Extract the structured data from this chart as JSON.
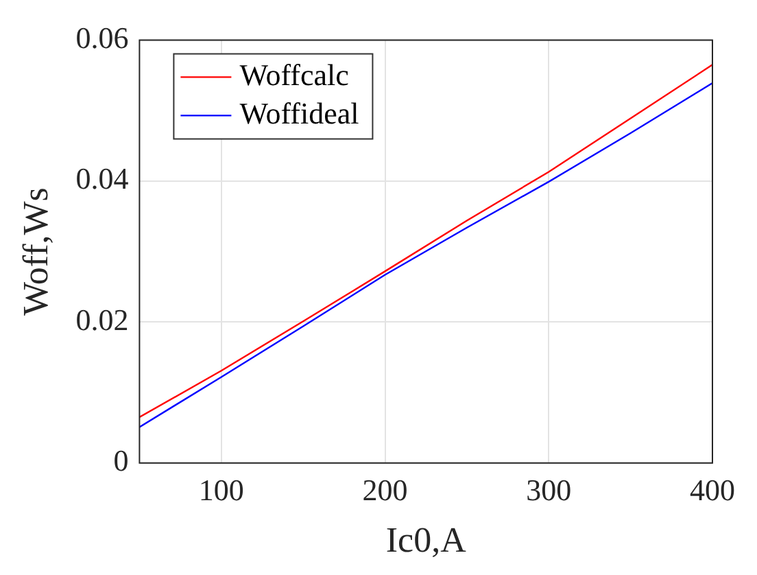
{
  "chart_data": {
    "type": "line",
    "xlabel": "Ic0,A",
    "ylabel": "Woff,Ws",
    "x": [
      50,
      100,
      150,
      200,
      250,
      300,
      350,
      400
    ],
    "series": [
      {
        "name": "Woffcalc",
        "color": "#ff0000",
        "values": [
          0.0065,
          0.0131,
          0.0201,
          0.0272,
          0.0344,
          0.0413,
          0.0489,
          0.0565
        ]
      },
      {
        "name": "Woffideal",
        "color": "#0000ff",
        "values": [
          0.0051,
          0.0122,
          0.0194,
          0.0267,
          0.0334,
          0.0399,
          0.0468,
          0.0539
        ]
      }
    ],
    "xlim": [
      50,
      400
    ],
    "xticks": [
      100,
      200,
      300,
      400
    ],
    "ylim": [
      0,
      0.06
    ],
    "yticks": [
      0,
      0.02,
      0.04,
      0.06
    ],
    "grid": true,
    "legend": "top left",
    "marker": "none",
    "line_style": "solid"
  }
}
